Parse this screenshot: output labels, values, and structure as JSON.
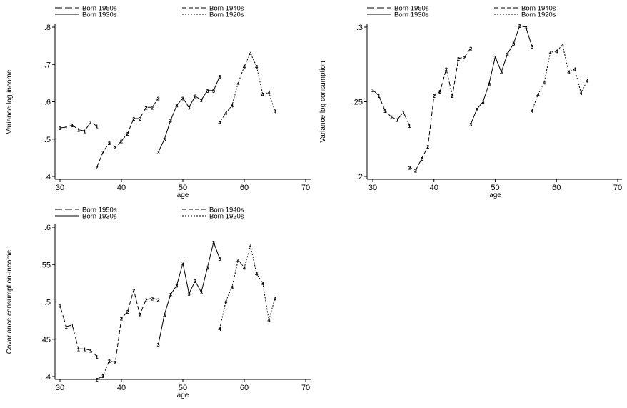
{
  "legend_labels": [
    "Born 1950s",
    "Born 1940s",
    "Born 1930s",
    "Born 1920s"
  ],
  "chart_data": [
    {
      "type": "line",
      "ylabel": "Variance log income",
      "xlabel": "age",
      "xlim": [
        30,
        70
      ],
      "ylim": [
        0.4,
        0.8
      ],
      "xticks": [
        "30",
        "40",
        "50",
        "60",
        "70"
      ],
      "yticks": [
        ".4",
        ".5",
        ".6",
        ".7",
        ".8"
      ],
      "legend_placement": "top",
      "series": [
        {
          "name": "Born 1950s",
          "marker": "1",
          "x": [
            30,
            31,
            32,
            33,
            34,
            35,
            36
          ],
          "y": [
            0.53,
            0.532,
            0.538,
            0.525,
            0.522,
            0.545,
            0.535
          ]
        },
        {
          "name": "Born 1940s",
          "marker": "2",
          "x": [
            36,
            37,
            38,
            39,
            40,
            41,
            42,
            43,
            44,
            45,
            46
          ],
          "y": [
            0.425,
            0.465,
            0.49,
            0.478,
            0.495,
            0.515,
            0.555,
            0.555,
            0.585,
            0.585,
            0.61
          ]
        },
        {
          "name": "Born 1930s",
          "marker": "3",
          "x": [
            46,
            47,
            48,
            49,
            50,
            51,
            52,
            53,
            54,
            55,
            56
          ],
          "y": [
            0.465,
            0.5,
            0.55,
            0.59,
            0.61,
            0.585,
            0.615,
            0.605,
            0.63,
            0.63,
            0.668
          ]
        },
        {
          "name": "Born 1920s",
          "marker": "4",
          "x": [
            56,
            57,
            58,
            59,
            60,
            61,
            62,
            63,
            64,
            65
          ],
          "y": [
            0.545,
            0.57,
            0.59,
            0.65,
            0.695,
            0.73,
            0.695,
            0.62,
            0.625,
            0.575
          ]
        }
      ]
    },
    {
      "type": "line",
      "ylabel": "Variance log consumption",
      "xlabel": "age",
      "xlim": [
        30,
        70
      ],
      "ylim": [
        0.2,
        0.3
      ],
      "xticks": [
        "30",
        "40",
        "50",
        "60",
        "70"
      ],
      "yticks": [
        ".2",
        ".25",
        ".3"
      ],
      "legend_placement": "top",
      "series": [
        {
          "name": "Born 1950s",
          "marker": "1",
          "x": [
            30,
            31,
            32,
            33,
            34,
            35,
            36
          ],
          "y": [
            0.258,
            0.254,
            0.244,
            0.24,
            0.238,
            0.243,
            0.234
          ]
        },
        {
          "name": "Born 1940s",
          "marker": "2",
          "x": [
            36,
            37,
            38,
            39,
            40,
            41,
            42,
            43,
            44,
            45,
            46
          ],
          "y": [
            0.206,
            0.204,
            0.212,
            0.22,
            0.254,
            0.257,
            0.272,
            0.254,
            0.279,
            0.28,
            0.286
          ]
        },
        {
          "name": "Born 1930s",
          "marker": "3",
          "x": [
            46,
            47,
            48,
            49,
            50,
            51,
            52,
            53,
            54,
            55,
            56
          ],
          "y": [
            0.235,
            0.245,
            0.25,
            0.262,
            0.28,
            0.27,
            0.282,
            0.289,
            0.301,
            0.3,
            0.287
          ]
        },
        {
          "name": "Born 1920s",
          "marker": "4",
          "x": [
            56,
            57,
            58,
            59,
            60,
            61,
            62,
            63,
            64,
            65
          ],
          "y": [
            0.244,
            0.255,
            0.263,
            0.283,
            0.284,
            0.288,
            0.27,
            0.272,
            0.256,
            0.264
          ]
        }
      ]
    },
    {
      "type": "line",
      "ylabel": "Covariance consumption-income",
      "xlabel": "age",
      "xlim": [
        30,
        70
      ],
      "ylim": [
        0.4,
        0.6
      ],
      "xticks": [
        "30",
        "40",
        "50",
        "60",
        "70"
      ],
      "yticks": [
        ".4",
        ".45",
        ".5",
        ".55",
        ".6"
      ],
      "legend_placement": "top",
      "series": [
        {
          "name": "Born 1950s",
          "marker": "1",
          "x": [
            30,
            31,
            32,
            33,
            34,
            35,
            36
          ],
          "y": [
            0.495,
            0.467,
            0.469,
            0.437,
            0.437,
            0.435,
            0.427
          ]
        },
        {
          "name": "Born 1940s",
          "marker": "2",
          "x": [
            36,
            37,
            38,
            39,
            40,
            41,
            42,
            43,
            44,
            45,
            46
          ],
          "y": [
            0.396,
            0.401,
            0.421,
            0.419,
            0.478,
            0.487,
            0.516,
            0.483,
            0.503,
            0.505,
            0.503
          ]
        },
        {
          "name": "Born 1930s",
          "marker": "3",
          "x": [
            46,
            47,
            48,
            49,
            50,
            51,
            52,
            53,
            54,
            55,
            56
          ],
          "y": [
            0.443,
            0.483,
            0.51,
            0.522,
            0.552,
            0.511,
            0.528,
            0.513,
            0.546,
            0.58,
            0.558
          ]
        },
        {
          "name": "Born 1920s",
          "marker": "4",
          "x": [
            56,
            57,
            58,
            59,
            60,
            61,
            62,
            63,
            64,
            65
          ],
          "y": [
            0.464,
            0.501,
            0.52,
            0.556,
            0.546,
            0.575,
            0.538,
            0.525,
            0.476,
            0.505
          ]
        }
      ]
    }
  ]
}
